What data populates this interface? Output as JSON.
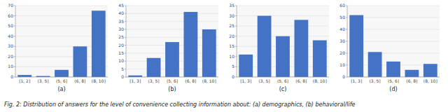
{
  "chart_data": [
    {
      "type": "bar",
      "x_label": "(a)",
      "categories": [
        "[1, 2]",
        "(3, 5]",
        "(5, 6]",
        "(6, 8]",
        "(8, 10]"
      ],
      "values": [
        2,
        1,
        7,
        30,
        65
      ],
      "color": "#4472C4",
      "ylim": [
        0,
        70
      ],
      "yticks": [
        0,
        10,
        20,
        30,
        40,
        50,
        60,
        70
      ],
      "grid": true
    },
    {
      "type": "bar",
      "x_label": "(b)",
      "categories": [
        "[1, 3]",
        "(3, 5]",
        "(5, 6]",
        "(6, 8]",
        "(8, 10]"
      ],
      "values": [
        1,
        12,
        22,
        41,
        30
      ],
      "color": "#4472C4",
      "ylim": [
        0,
        45
      ],
      "yticks": [
        0,
        5,
        10,
        15,
        20,
        25,
        30,
        35,
        40,
        45
      ],
      "grid": true
    },
    {
      "type": "bar",
      "x_label": "(c)",
      "categories": [
        "[1, 3]",
        "(3, 5]",
        "(5, 6]",
        "(6, 8]",
        "(8, 10]"
      ],
      "values": [
        11,
        30,
        20,
        28,
        18
      ],
      "color": "#4472C4",
      "ylim": [
        0,
        35
      ],
      "yticks": [
        0,
        5,
        10,
        15,
        20,
        25,
        30,
        35
      ],
      "grid": true
    },
    {
      "type": "bar",
      "x_label": "(d)",
      "categories": [
        "[1, 3]",
        "(3, 5]",
        "(5, 6]",
        "(6, 8]",
        "(8, 10]"
      ],
      "values": [
        52,
        21,
        13,
        6,
        11
      ],
      "color": "#4472C4",
      "ylim": [
        0,
        60
      ],
      "yticks": [
        0,
        10,
        20,
        30,
        40,
        50,
        60
      ],
      "grid": true
    }
  ],
  "caption": "Fig. 2: Distribution of answers for the level of convenience collecting information about: (a) demographics, (b) behavioral/life"
}
